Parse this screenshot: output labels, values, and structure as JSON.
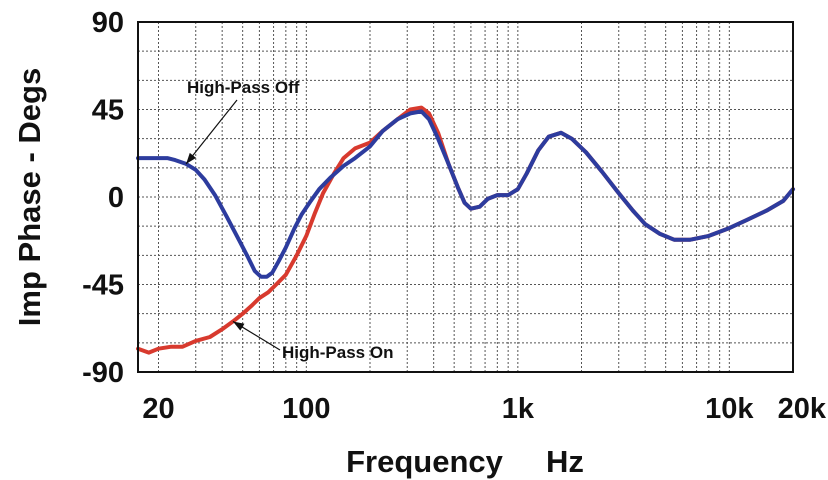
{
  "chart_data": {
    "type": "line",
    "title": "",
    "xlabel": "Frequency     Hz",
    "ylabel": "Imp Phase - Degs",
    "x_scale": "log",
    "xlim": [
      16,
      20000
    ],
    "ylim": [
      -90,
      90
    ],
    "x_ticks": [
      {
        "value": 20,
        "label": "20"
      },
      {
        "value": 100,
        "label": "100"
      },
      {
        "value": 1000,
        "label": "1k"
      },
      {
        "value": 10000,
        "label": "10k"
      },
      {
        "value": 20000,
        "label": "20k"
      }
    ],
    "y_ticks": [
      {
        "value": 90,
        "label": "90"
      },
      {
        "value": 45,
        "label": "45"
      },
      {
        "value": 0,
        "label": "0"
      },
      {
        "value": -45,
        "label": "-45"
      },
      {
        "value": -90,
        "label": "-90"
      }
    ],
    "grid": true,
    "legend": "none",
    "series": [
      {
        "name": "High-Pass On",
        "color": "#d83a2e",
        "points": [
          [
            16,
            -78
          ],
          [
            18,
            -80
          ],
          [
            20,
            -78
          ],
          [
            23,
            -77
          ],
          [
            26,
            -77
          ],
          [
            30,
            -74
          ],
          [
            35,
            -72
          ],
          [
            40,
            -68
          ],
          [
            45,
            -64
          ],
          [
            50,
            -60
          ],
          [
            55,
            -56
          ],
          [
            60,
            -52
          ],
          [
            66,
            -49
          ],
          [
            72,
            -45
          ],
          [
            80,
            -40
          ],
          [
            90,
            -30
          ],
          [
            100,
            -20
          ],
          [
            110,
            -8
          ],
          [
            120,
            2
          ],
          [
            135,
            12
          ],
          [
            150,
            20
          ],
          [
            170,
            25
          ],
          [
            200,
            28
          ],
          [
            230,
            34
          ],
          [
            270,
            40
          ],
          [
            310,
            45
          ],
          [
            350,
            46
          ],
          [
            380,
            43
          ],
          [
            420,
            33
          ],
          [
            470,
            17
          ],
          [
            520,
            5
          ],
          [
            560,
            -3
          ],
          [
            600,
            -6
          ],
          [
            660,
            -5
          ],
          [
            720,
            -1
          ],
          [
            800,
            1
          ],
          [
            900,
            1
          ],
          [
            1000,
            4
          ],
          [
            1100,
            12
          ],
          [
            1250,
            24
          ],
          [
            1400,
            31
          ],
          [
            1600,
            33
          ],
          [
            1800,
            30
          ],
          [
            2100,
            23
          ],
          [
            2500,
            13
          ],
          [
            3000,
            2
          ],
          [
            3500,
            -7
          ],
          [
            4000,
            -14
          ],
          [
            4700,
            -19
          ],
          [
            5500,
            -22
          ],
          [
            6500,
            -22
          ],
          [
            8000,
            -20
          ],
          [
            10000,
            -16
          ],
          [
            12000,
            -12
          ],
          [
            15000,
            -7
          ],
          [
            18000,
            -2
          ],
          [
            20000,
            4
          ]
        ]
      },
      {
        "name": "High-Pass Off",
        "color": "#2d3c9e",
        "points": [
          [
            16,
            20
          ],
          [
            18,
            20
          ],
          [
            20,
            20
          ],
          [
            22,
            20
          ],
          [
            24,
            19
          ],
          [
            27,
            17
          ],
          [
            30,
            14
          ],
          [
            33,
            9
          ],
          [
            37,
            1
          ],
          [
            42,
            -10
          ],
          [
            48,
            -22
          ],
          [
            53,
            -31
          ],
          [
            57,
            -38
          ],
          [
            61,
            -41
          ],
          [
            65,
            -41
          ],
          [
            69,
            -39
          ],
          [
            74,
            -33
          ],
          [
            80,
            -26
          ],
          [
            88,
            -16
          ],
          [
            95,
            -9
          ],
          [
            105,
            -2
          ],
          [
            115,
            4
          ],
          [
            130,
            10
          ],
          [
            150,
            16
          ],
          [
            170,
            20
          ],
          [
            200,
            26
          ],
          [
            230,
            34
          ],
          [
            270,
            40
          ],
          [
            310,
            43
          ],
          [
            350,
            44
          ],
          [
            380,
            40
          ],
          [
            420,
            30
          ],
          [
            470,
            17
          ],
          [
            520,
            5
          ],
          [
            560,
            -3
          ],
          [
            600,
            -6
          ],
          [
            660,
            -5
          ],
          [
            720,
            -1
          ],
          [
            800,
            1
          ],
          [
            900,
            1
          ],
          [
            1000,
            4
          ],
          [
            1100,
            12
          ],
          [
            1250,
            24
          ],
          [
            1400,
            31
          ],
          [
            1600,
            33
          ],
          [
            1800,
            30
          ],
          [
            2100,
            23
          ],
          [
            2500,
            13
          ],
          [
            3000,
            2
          ],
          [
            3500,
            -7
          ],
          [
            4000,
            -14
          ],
          [
            4700,
            -19
          ],
          [
            5500,
            -22
          ],
          [
            6500,
            -22
          ],
          [
            8000,
            -20
          ],
          [
            10000,
            -16
          ],
          [
            12000,
            -12
          ],
          [
            15000,
            -7
          ],
          [
            18000,
            -2
          ],
          [
            20000,
            4
          ]
        ]
      }
    ],
    "annotations": [
      {
        "text": "High-Pass Off",
        "points_to": [
          27,
          17
        ]
      },
      {
        "text": "High-Pass On",
        "points_to": [
          45,
          -64
        ]
      }
    ]
  }
}
